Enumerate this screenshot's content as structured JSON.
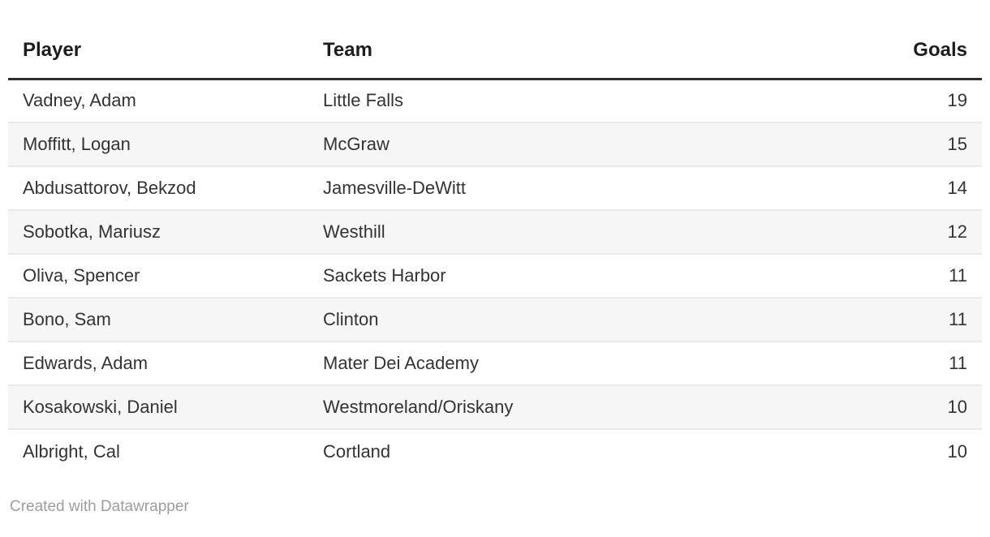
{
  "chart_data": {
    "type": "table",
    "columns": [
      "Player",
      "Team",
      "Goals"
    ],
    "rows": [
      [
        "Vadney, Adam",
        "Little Falls",
        19
      ],
      [
        "Moffitt, Logan",
        "McGraw",
        15
      ],
      [
        "Abdusattorov, Bekzod",
        "Jamesville-DeWitt",
        14
      ],
      [
        "Sobotka, Mariusz",
        "Westhill",
        12
      ],
      [
        "Oliva, Spencer",
        "Sackets Harbor",
        11
      ],
      [
        "Bono, Sam",
        "Clinton",
        11
      ],
      [
        "Edwards, Adam",
        "Mater Dei Academy",
        11
      ],
      [
        "Kosakowski, Daniel",
        "Westmoreland/Oriskany",
        10
      ],
      [
        "Albright, Cal",
        "Cortland",
        10
      ]
    ],
    "layout": {
      "striped_rows": true,
      "goals_column_align": "right",
      "header_rule": true
    }
  },
  "footer": {
    "attribution": "Created with Datawrapper"
  },
  "colors": {
    "header_text": "#1d1d1d",
    "body_text": "#333333",
    "stripe": "#f6f6f6",
    "row_border": "#e9e9e9",
    "header_rule": "#2e2e2e",
    "footer_text": "#9d9d9d",
    "page_bg": "#ffffff"
  }
}
